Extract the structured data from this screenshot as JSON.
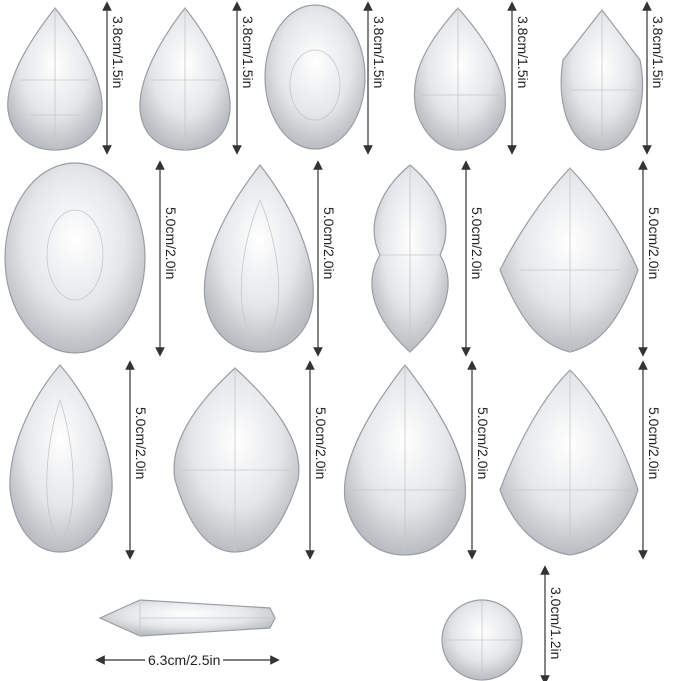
{
  "labels": {
    "small": "3.8cm/1.5in",
    "large": "5.0cm/2.0in",
    "ball": "3.0cm/1.2in",
    "icicle": "6.3cm/2.5in"
  },
  "colors": {
    "crystal_fill": "#e6e8ea",
    "facet": "#9a9ea3",
    "arrow": "#333333"
  }
}
